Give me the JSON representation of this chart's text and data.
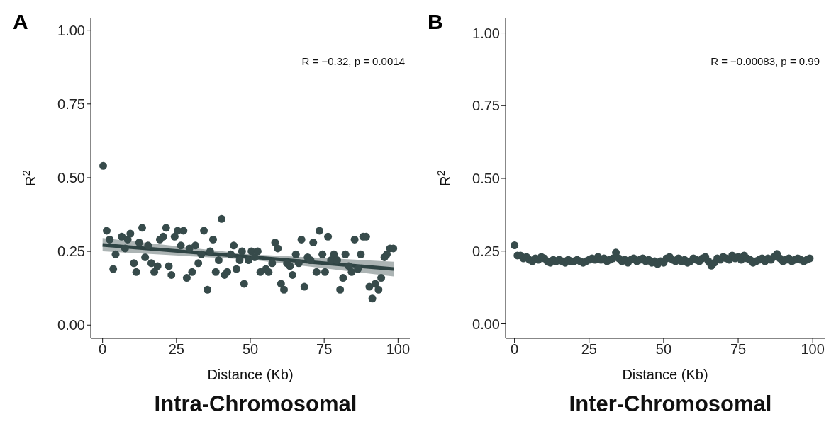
{
  "chart_data": [
    {
      "type": "scatter",
      "title": "A",
      "xlabel": "Distance (Kb)",
      "ylabel": "R$^{2}$",
      "annotations": [
        "R = −0.32, p = 0.0014",
        "Intra-Chromosomal"
      ],
      "xlim": [
        -4,
        104
      ],
      "xticks": [
        0,
        25,
        50,
        75,
        100
      ],
      "ylim": [
        -0.045,
        1.04
      ],
      "yticks": [
        {
          "value": 0,
          "label": "0.00"
        },
        {
          "value": 0.25,
          "label": "0.25"
        },
        {
          "value": 0.5,
          "label": "0.50"
        },
        {
          "value": 0.75,
          "label": "0.75"
        },
        {
          "value": 1,
          "label": "1.00"
        }
      ],
      "series": [
        {
          "marker": "circle",
          "color": "#374b4b",
          "x": [
            0.2,
            1.4,
            2.4,
            3.6,
            4.4,
            6.5,
            7.6,
            8.5,
            9.4,
            10.6,
            11.4,
            12.4,
            13.4,
            14.4,
            15.4,
            16.5,
            17.5,
            18.6,
            19.4,
            20.5,
            21.5,
            22.4,
            23.3,
            24.4,
            25.4,
            26.5,
            27.4,
            28.5,
            29.4,
            30.3,
            31.4,
            32.4,
            33.4,
            34.3,
            35.5,
            36.4,
            37.4,
            38.3,
            39.3,
            40.3,
            41.3,
            42.2,
            43.4,
            44.4,
            45.3,
            46.4,
            47.2,
            47.9,
            49.4,
            50.4,
            51.5,
            52.5,
            53.4,
            55.3,
            56.2,
            57.4,
            58.4,
            59.3,
            60.4,
            61.4,
            62.4,
            63.4,
            64.3,
            65.4,
            66.4,
            67.3,
            68.3,
            69.4,
            70.4,
            71.3,
            72.4,
            73.4,
            74.4,
            75.3,
            76.3,
            77.3,
            78.3,
            79.4,
            80.4,
            81.4,
            82.2,
            83.3,
            84.3,
            85.3,
            86.4,
            87.4,
            88.2,
            89.2,
            90.3,
            91.3,
            92.3,
            93.4,
            94.3,
            95.4,
            96.2,
            97.3,
            98.4
          ],
          "values": [
            0.54,
            0.32,
            0.29,
            0.19,
            0.24,
            0.3,
            0.26,
            0.29,
            0.31,
            0.21,
            0.18,
            0.28,
            0.33,
            0.23,
            0.27,
            0.21,
            0.18,
            0.2,
            0.29,
            0.3,
            0.33,
            0.2,
            0.17,
            0.3,
            0.32,
            0.27,
            0.32,
            0.16,
            0.26,
            0.18,
            0.27,
            0.21,
            0.24,
            0.32,
            0.12,
            0.25,
            0.29,
            0.18,
            0.22,
            0.36,
            0.17,
            0.18,
            0.24,
            0.27,
            0.19,
            0.22,
            0.25,
            0.14,
            0.22,
            0.25,
            0.23,
            0.25,
            0.18,
            0.19,
            0.18,
            0.21,
            0.28,
            0.26,
            0.14,
            0.12,
            0.21,
            0.2,
            0.17,
            0.24,
            0.21,
            0.29,
            0.13,
            0.23,
            0.22,
            0.28,
            0.18,
            0.32,
            0.24,
            0.18,
            0.3,
            0.22,
            0.24,
            0.22,
            0.12,
            0.16,
            0.24,
            0.2,
            0.18,
            0.29,
            0.19,
            0.24,
            0.3,
            0.3,
            0.13,
            0.09,
            0.14,
            0.12,
            0.16,
            0.23,
            0.24,
            0.26,
            0.26
          ]
        },
        {
          "type": "line",
          "color": "#2f4444",
          "x": [
            0,
            50,
            98.5
          ],
          "values": [
            0.272,
            0.231,
            0.19
          ],
          "lower": [
            0.25,
            0.222,
            0.165
          ],
          "upper": [
            0.295,
            0.24,
            0.215
          ]
        }
      ]
    },
    {
      "type": "scatter",
      "title": "B",
      "xlabel": "Distance (Kb)",
      "ylabel": "R$^{2}$",
      "annotations": [
        "R = −0.00083, p = 0.99",
        "Inter-Chromosomal"
      ],
      "xlim": [
        -3,
        104
      ],
      "xticks": [
        0,
        25,
        50,
        75,
        100
      ],
      "ylim": [
        -0.05,
        1.05
      ],
      "yticks": [
        {
          "value": 0,
          "label": "0.00"
        },
        {
          "value": 0.25,
          "label": "0.25"
        },
        {
          "value": 0.5,
          "label": "0.50"
        },
        {
          "value": 0.75,
          "label": "0.75"
        },
        {
          "value": 1,
          "label": "1.00"
        }
      ],
      "series": [
        {
          "marker": "circle",
          "color": "#374b4b",
          "x": [
            0,
            1,
            2,
            3,
            4,
            5,
            6,
            7,
            8,
            9,
            10,
            11,
            12,
            13,
            14,
            15,
            16,
            17,
            18,
            19,
            20,
            21,
            22,
            23,
            24,
            25,
            26,
            27,
            28,
            29,
            30,
            31,
            32,
            33,
            34,
            35,
            36,
            37,
            38,
            39,
            40,
            41,
            42,
            43,
            44,
            45,
            46,
            47,
            48,
            49,
            50,
            51,
            52,
            53,
            54,
            55,
            56,
            57,
            58,
            59,
            60,
            61,
            62,
            63,
            64,
            65,
            66,
            67,
            68,
            69,
            70,
            71,
            72,
            73,
            74,
            75,
            76,
            77,
            78,
            79,
            80,
            81,
            82,
            83,
            84,
            85,
            86,
            87,
            88,
            89,
            90,
            91,
            92,
            93,
            94,
            95,
            96,
            97,
            98,
            99
          ],
          "values": [
            0.27,
            0.235,
            0.235,
            0.225,
            0.23,
            0.22,
            0.215,
            0.225,
            0.22,
            0.23,
            0.225,
            0.215,
            0.21,
            0.22,
            0.215,
            0.22,
            0.215,
            0.21,
            0.22,
            0.215,
            0.215,
            0.22,
            0.215,
            0.21,
            0.215,
            0.22,
            0.225,
            0.22,
            0.23,
            0.22,
            0.225,
            0.215,
            0.22,
            0.225,
            0.245,
            0.225,
            0.215,
            0.22,
            0.21,
            0.22,
            0.225,
            0.215,
            0.22,
            0.225,
            0.215,
            0.22,
            0.21,
            0.215,
            0.205,
            0.215,
            0.21,
            0.225,
            0.23,
            0.22,
            0.215,
            0.225,
            0.215,
            0.22,
            0.21,
            0.215,
            0.225,
            0.22,
            0.215,
            0.225,
            0.23,
            0.215,
            0.2,
            0.21,
            0.225,
            0.22,
            0.23,
            0.225,
            0.22,
            0.235,
            0.225,
            0.23,
            0.22,
            0.235,
            0.225,
            0.22,
            0.21,
            0.215,
            0.22,
            0.225,
            0.215,
            0.225,
            0.22,
            0.23,
            0.24,
            0.225,
            0.215,
            0.22,
            0.225,
            0.215,
            0.22,
            0.225,
            0.22,
            0.215,
            0.22,
            0.225
          ]
        }
      ]
    }
  ]
}
